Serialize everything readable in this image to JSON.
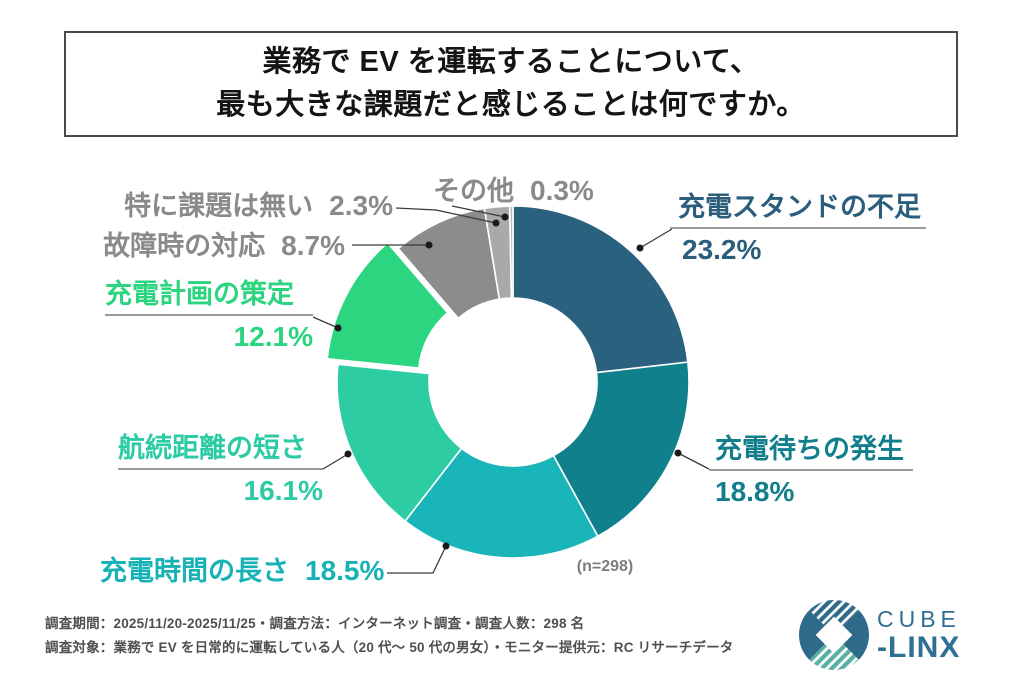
{
  "header": {
    "title_line1": "業務で EV を運転することについて、",
    "title_line2": "最も大きな課題だと感じることは何ですか。"
  },
  "chart_data": {
    "type": "pie",
    "subtype": "donut",
    "title": "業務で EV を運転することについて、最も大きな課題だと感じることは何ですか。",
    "center_note": "(n=298)",
    "sample_size": 298,
    "unit": "%",
    "start_angle_deg": 0,
    "direction": "clockwise",
    "donut_hole_ratio": 0.48,
    "segments": [
      {
        "label": "充電スタンドの不足",
        "value": 23.2,
        "pct": "23.2%",
        "color": "#2A617E",
        "label_color": "#2A5E7C",
        "exploded": false
      },
      {
        "label": "充電待ちの発生",
        "value": 18.8,
        "pct": "18.8%",
        "color": "#10808D",
        "label_color": "#117E8C",
        "exploded": false
      },
      {
        "label": "充電時間の長さ",
        "value": 18.5,
        "pct": "18.5%",
        "color": "#1AB5B8",
        "label_color": "#17B2B6",
        "exploded": false
      },
      {
        "label": "航続距離の短さ",
        "value": 16.1,
        "pct": "16.1%",
        "color": "#2DCCA3",
        "label_color": "#2CCBA4",
        "exploded": false
      },
      {
        "label": "充電計画の策定",
        "value": 12.1,
        "pct": "12.1%",
        "color": "#2CD57F",
        "label_color": "#2BD47F",
        "exploded": true
      },
      {
        "label": "故障時の対応",
        "value": 8.7,
        "pct": "8.7%",
        "color": "#8C8C8C",
        "label_color": "#8A8A8A",
        "exploded": false
      },
      {
        "label": "特に課題は無い",
        "value": 2.3,
        "pct": "2.3%",
        "color": "#A9A9A9",
        "label_color": "#8A8A8A",
        "exploded": false
      },
      {
        "label": "その他",
        "value": 0.3,
        "pct": "0.3%",
        "color": "#BABABA",
        "label_color": "#8A8A8A",
        "exploded": false
      }
    ]
  },
  "footer": {
    "line1": "調査期間：2025/11/20-2025/11/25・調査方法：インターネット調査・調査人数：298 名",
    "line2": "調査対象：業務で EV を日常的に運転している人（20 代〜 50 代の男女）・モニター提供元：RC リサーチデータ"
  },
  "logo": {
    "brand_top": "CUBE",
    "brand_bottom": "-LINX"
  }
}
